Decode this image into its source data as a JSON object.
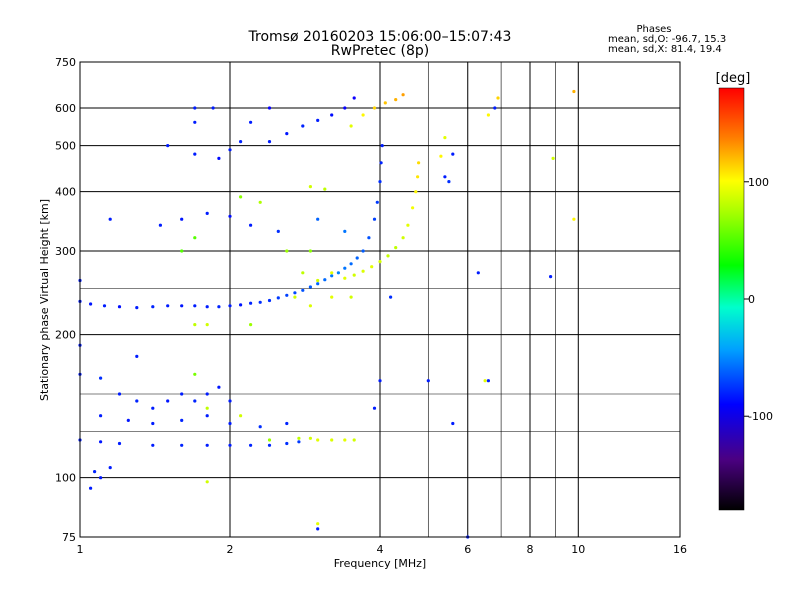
{
  "header": {
    "title_line1": "Tromsø 20160203 15:06:00–15:07:43",
    "title_line2": "RwPretec (8p)"
  },
  "stats": {
    "heading": "Phases",
    "o_line": "mean, sd,O: -96.7, 15.3",
    "x_line": "mean, sd,X:  81.4, 19.4"
  },
  "chart_data": {
    "type": "scatter",
    "xlabel": "Frequency [MHz]",
    "ylabel": "Stationary phase Virtual Height [km]",
    "x_scale": "log2",
    "y_scale": "log",
    "xlim": [
      1,
      16
    ],
    "ylim": [
      75,
      750
    ],
    "x_ticks": [
      1,
      2,
      4,
      6,
      8,
      10,
      16
    ],
    "x_tick_labels": [
      "1",
      "2",
      "4",
      "6",
      "8",
      "10",
      "16"
    ],
    "x_gridlines": [
      1,
      2,
      4,
      6,
      8,
      10
    ],
    "x_minor_gridlines": [
      5,
      7,
      9
    ],
    "y_ticks": [
      75,
      100,
      200,
      300,
      400,
      500,
      600,
      750
    ],
    "y_tick_labels": [
      "75",
      "100",
      "200",
      "300",
      "400",
      "500",
      "600",
      "750"
    ],
    "y_gridlines": [
      100,
      200,
      300,
      400,
      500,
      600
    ],
    "y_minor_gridlines": [
      125,
      150,
      250
    ],
    "grid": true,
    "colorbar": {
      "unit": "[deg]",
      "range": [
        -180,
        180
      ],
      "ticks": [
        100,
        0,
        -100
      ],
      "tick_labels": [
        "100",
        "0",
        "-100"
      ]
    },
    "series": [
      {
        "trace": [
          {
            "f": 1.0,
            "h": 235,
            "p": -100
          },
          {
            "f": 1.05,
            "h": 232,
            "p": -102
          },
          {
            "f": 1.12,
            "h": 230,
            "p": -100
          },
          {
            "f": 1.2,
            "h": 229,
            "p": -104
          },
          {
            "f": 1.3,
            "h": 228,
            "p": -100
          },
          {
            "f": 1.4,
            "h": 229,
            "p": -98
          },
          {
            "f": 1.5,
            "h": 230,
            "p": -100
          },
          {
            "f": 1.6,
            "h": 230,
            "p": -102
          },
          {
            "f": 1.7,
            "h": 230,
            "p": -100
          },
          {
            "f": 1.8,
            "h": 229,
            "p": -100
          },
          {
            "f": 1.9,
            "h": 229,
            "p": -98
          },
          {
            "f": 2.0,
            "h": 230,
            "p": -100
          },
          {
            "f": 2.1,
            "h": 231,
            "p": -102
          },
          {
            "f": 2.2,
            "h": 233,
            "p": -98
          },
          {
            "f": 2.3,
            "h": 234,
            "p": -95
          },
          {
            "f": 2.4,
            "h": 236,
            "p": -95
          },
          {
            "f": 2.5,
            "h": 239,
            "p": -92
          },
          {
            "f": 2.6,
            "h": 242,
            "p": -90
          },
          {
            "f": 2.7,
            "h": 245,
            "p": -88
          },
          {
            "f": 2.8,
            "h": 248,
            "p": -85
          },
          {
            "f": 2.9,
            "h": 252,
            "p": -82
          },
          {
            "f": 3.0,
            "h": 256,
            "p": -80
          },
          {
            "f": 3.1,
            "h": 261,
            "p": -78
          },
          {
            "f": 3.2,
            "h": 266,
            "p": -75
          },
          {
            "f": 3.3,
            "h": 270,
            "p": -72
          },
          {
            "f": 3.4,
            "h": 276,
            "p": -75
          },
          {
            "f": 3.5,
            "h": 282,
            "p": -78
          },
          {
            "f": 3.6,
            "h": 290,
            "p": -80
          },
          {
            "f": 3.7,
            "h": 300,
            "p": -82
          },
          {
            "f": 3.8,
            "h": 320,
            "p": -85
          },
          {
            "f": 3.9,
            "h": 350,
            "p": -90
          },
          {
            "f": 3.95,
            "h": 380,
            "p": -92
          },
          {
            "f": 4.0,
            "h": 420,
            "p": -95
          },
          {
            "f": 4.02,
            "h": 460,
            "p": -98
          },
          {
            "f": 4.04,
            "h": 500,
            "p": -100
          }
        ]
      },
      {
        "trace": [
          {
            "f": 3.4,
            "h": 263,
            "p": 100
          },
          {
            "f": 3.55,
            "h": 267,
            "p": 95
          },
          {
            "f": 3.7,
            "h": 272,
            "p": 98
          },
          {
            "f": 3.85,
            "h": 278,
            "p": 100
          },
          {
            "f": 4.0,
            "h": 285,
            "p": 95
          },
          {
            "f": 4.15,
            "h": 293,
            "p": 92
          },
          {
            "f": 4.3,
            "h": 305,
            "p": 90
          },
          {
            "f": 4.45,
            "h": 320,
            "p": 95
          },
          {
            "f": 4.55,
            "h": 340,
            "p": 100
          },
          {
            "f": 4.65,
            "h": 370,
            "p": 105
          },
          {
            "f": 4.72,
            "h": 400,
            "p": 110
          },
          {
            "f": 4.76,
            "h": 430,
            "p": 115
          },
          {
            "f": 4.78,
            "h": 460,
            "p": 118
          }
        ]
      },
      {
        "trace": [
          {
            "f": 1.0,
            "h": 120,
            "p": -100
          },
          {
            "f": 1.1,
            "h": 119,
            "p": -102
          },
          {
            "f": 1.2,
            "h": 118,
            "p": -100
          },
          {
            "f": 1.4,
            "h": 117,
            "p": -100
          },
          {
            "f": 1.6,
            "h": 117,
            "p": -98
          },
          {
            "f": 1.8,
            "h": 117,
            "p": -100
          },
          {
            "f": 2.0,
            "h": 117,
            "p": -100
          },
          {
            "f": 2.2,
            "h": 117,
            "p": -98
          },
          {
            "f": 2.4,
            "h": 117,
            "p": -97
          },
          {
            "f": 2.6,
            "h": 118,
            "p": -95
          },
          {
            "f": 2.75,
            "h": 119,
            "p": -92
          }
        ]
      },
      {
        "trace": [
          {
            "f": 2.75,
            "h": 121,
            "p": 90
          },
          {
            "f": 2.9,
            "h": 121,
            "p": 95
          },
          {
            "f": 3.0,
            "h": 120,
            "p": 100
          },
          {
            "f": 3.2,
            "h": 120,
            "p": 98
          },
          {
            "f": 3.4,
            "h": 120,
            "p": 100
          },
          {
            "f": 3.55,
            "h": 120,
            "p": 95
          }
        ]
      },
      {
        "trace": [
          {
            "f": 2.4,
            "h": 510,
            "p": -100
          },
          {
            "f": 2.6,
            "h": 530,
            "p": -102
          },
          {
            "f": 2.8,
            "h": 550,
            "p": -98
          },
          {
            "f": 3.0,
            "h": 565,
            "p": -100
          },
          {
            "f": 3.2,
            "h": 580,
            "p": -105
          },
          {
            "f": 3.4,
            "h": 600,
            "p": -110
          },
          {
            "f": 3.55,
            "h": 630,
            "p": -112
          }
        ]
      },
      {
        "trace": [
          {
            "f": 3.5,
            "h": 550,
            "p": 100
          },
          {
            "f": 3.7,
            "h": 580,
            "p": 110
          },
          {
            "f": 3.9,
            "h": 600,
            "p": 120
          },
          {
            "f": 4.1,
            "h": 615,
            "p": 125
          },
          {
            "f": 4.3,
            "h": 625,
            "p": 130
          },
          {
            "f": 4.45,
            "h": 640,
            "p": 135
          }
        ]
      },
      {
        "trace": [
          {
            "f": 1.5,
            "h": 500,
            "p": -100
          },
          {
            "f": 1.7,
            "h": 480,
            "p": -100
          },
          {
            "f": 1.9,
            "h": 470,
            "p": -105
          },
          {
            "f": 2.0,
            "h": 490,
            "p": -100
          },
          {
            "f": 2.1,
            "h": 510,
            "p": -98
          },
          {
            "f": 2.2,
            "h": 560,
            "p": -100
          },
          {
            "f": 2.4,
            "h": 600,
            "p": -110
          },
          {
            "f": 1.85,
            "h": 600,
            "p": -100
          },
          {
            "f": 1.7,
            "h": 560,
            "p": -100
          }
        ]
      },
      {
        "trace": [
          {
            "f": 1.45,
            "h": 340,
            "p": -100
          },
          {
            "f": 1.6,
            "h": 350,
            "p": -102
          },
          {
            "f": 1.8,
            "h": 360,
            "p": -100
          },
          {
            "f": 2.0,
            "h": 355,
            "p": -105
          },
          {
            "f": 2.2,
            "h": 340,
            "p": -100
          },
          {
            "f": 2.5,
            "h": 330,
            "p": -95
          },
          {
            "f": 3.0,
            "h": 350,
            "p": -80
          },
          {
            "f": 3.4,
            "h": 330,
            "p": -75
          }
        ]
      },
      {
        "trace": [
          {
            "f": 1.0,
            "h": 165,
            "p": -100
          },
          {
            "f": 1.1,
            "h": 162,
            "p": -95
          },
          {
            "f": 1.2,
            "h": 150,
            "p": -100
          },
          {
            "f": 1.3,
            "h": 145,
            "p": -98
          },
          {
            "f": 1.4,
            "h": 140,
            "p": -100
          },
          {
            "f": 1.5,
            "h": 145,
            "p": -102
          },
          {
            "f": 1.6,
            "h": 150,
            "p": -100
          },
          {
            "f": 1.7,
            "h": 145,
            "p": -98
          },
          {
            "f": 1.8,
            "h": 150,
            "p": -100
          },
          {
            "f": 1.9,
            "h": 155,
            "p": -102
          },
          {
            "f": 2.0,
            "h": 145,
            "p": -100
          },
          {
            "f": 1.1,
            "h": 135,
            "p": -100
          },
          {
            "f": 1.25,
            "h": 132,
            "p": -102
          },
          {
            "f": 1.4,
            "h": 130,
            "p": -100
          },
          {
            "f": 1.6,
            "h": 132,
            "p": -98
          },
          {
            "f": 1.8,
            "h": 135,
            "p": -100
          },
          {
            "f": 2.0,
            "h": 130,
            "p": -100
          },
          {
            "f": 2.3,
            "h": 128,
            "p": -95
          },
          {
            "f": 2.6,
            "h": 130,
            "p": -98
          }
        ]
      },
      {
        "trace": [
          {
            "f": 1.6,
            "h": 300,
            "p": 60
          },
          {
            "f": 1.7,
            "h": 320,
            "p": 60
          },
          {
            "f": 2.1,
            "h": 390,
            "p": 75
          },
          {
            "f": 2.3,
            "h": 380,
            "p": 85
          },
          {
            "f": 2.6,
            "h": 300,
            "p": 80
          },
          {
            "f": 2.8,
            "h": 270,
            "p": 90
          },
          {
            "f": 3.0,
            "h": 260,
            "p": 95
          },
          {
            "f": 3.2,
            "h": 270,
            "p": 100
          },
          {
            "f": 2.9,
            "h": 410,
            "p": 95
          },
          {
            "f": 3.1,
            "h": 405,
            "p": 90
          },
          {
            "f": 2.7,
            "h": 240,
            "p": 95
          },
          {
            "f": 2.9,
            "h": 230,
            "p": 98
          },
          {
            "f": 3.2,
            "h": 240,
            "p": 100
          },
          {
            "f": 3.5,
            "h": 240,
            "p": 95
          },
          {
            "f": 1.7,
            "h": 210,
            "p": 90
          },
          {
            "f": 1.8,
            "h": 210,
            "p": 95
          },
          {
            "f": 1.7,
            "h": 165,
            "p": 70
          },
          {
            "f": 1.8,
            "h": 140,
            "p": 90
          },
          {
            "f": 2.1,
            "h": 135,
            "p": 95
          },
          {
            "f": 2.4,
            "h": 120,
            "p": 80
          },
          {
            "f": 2.2,
            "h": 210,
            "p": 80
          },
          {
            "f": 2.9,
            "h": 300,
            "p": 75
          },
          {
            "f": 5.3,
            "h": 475,
            "p": 110
          },
          {
            "f": 5.4,
            "h": 520,
            "p": 100
          },
          {
            "f": 6.6,
            "h": 580,
            "p": 110
          },
          {
            "f": 6.9,
            "h": 630,
            "p": 120
          },
          {
            "f": 8.9,
            "h": 470,
            "p": 95
          },
          {
            "f": 9.8,
            "h": 650,
            "p": 130
          },
          {
            "f": 9.8,
            "h": 350,
            "p": 110
          },
          {
            "f": 3.0,
            "h": 80,
            "p": 100
          },
          {
            "f": 1.8,
            "h": 98,
            "p": 95
          },
          {
            "f": 6.5,
            "h": 160,
            "p": 100
          }
        ]
      },
      {
        "trace": [
          {
            "f": 5.4,
            "h": 430,
            "p": -100
          },
          {
            "f": 5.5,
            "h": 420,
            "p": -95
          },
          {
            "f": 5.6,
            "h": 480,
            "p": -100
          },
          {
            "f": 6.3,
            "h": 270,
            "p": -100
          },
          {
            "f": 6.6,
            "h": 160,
            "p": -100
          },
          {
            "f": 8.8,
            "h": 265,
            "p": -100
          },
          {
            "f": 4.2,
            "h": 240,
            "p": -95
          },
          {
            "f": 3.0,
            "h": 78,
            "p": -100
          },
          {
            "f": 1.05,
            "h": 95,
            "p": -100
          },
          {
            "f": 1.1,
            "h": 100,
            "p": -102
          },
          {
            "f": 1.07,
            "h": 103,
            "p": -98
          },
          {
            "f": 1.15,
            "h": 105,
            "p": -100
          },
          {
            "f": 1.0,
            "h": 190,
            "p": -100
          },
          {
            "f": 1.3,
            "h": 180,
            "p": -100
          },
          {
            "f": 4.0,
            "h": 160,
            "p": -100
          },
          {
            "f": 3.9,
            "h": 140,
            "p": -100
          },
          {
            "f": 6.8,
            "h": 600,
            "p": -100
          },
          {
            "f": 5.0,
            "h": 160,
            "p": -100
          },
          {
            "f": 5.6,
            "h": 130,
            "p": -100
          },
          {
            "f": 6.0,
            "h": 75,
            "p": -100
          },
          {
            "f": 1.7,
            "h": 600,
            "p": -100
          },
          {
            "f": 1.15,
            "h": 350,
            "p": -100
          },
          {
            "f": 1.0,
            "h": 260,
            "p": -100
          }
        ]
      }
    ]
  }
}
